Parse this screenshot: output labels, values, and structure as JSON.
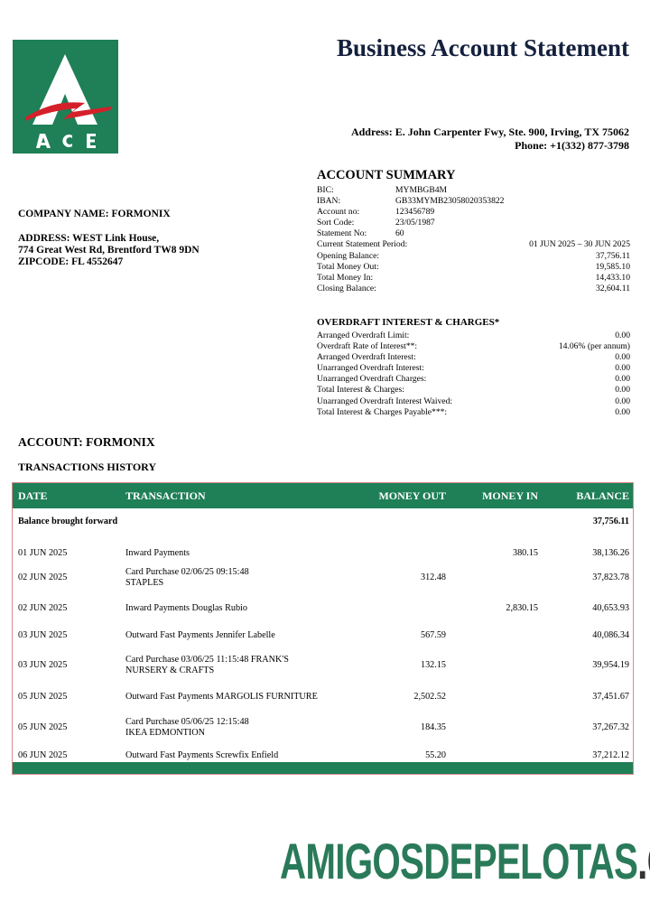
{
  "brand": {
    "logo_text": "ACE",
    "green": "#1f7f57",
    "red": "#d4202a"
  },
  "header": {
    "title": "Business Account Statement",
    "address": "Address: E. John Carpenter Fwy, Ste. 900, Irving, TX 75062",
    "phone": "Phone:  +1(332) 877-3798"
  },
  "customer": {
    "company": "COMPANY NAME: FORMONIX",
    "address_line1": "ADDRESS: WEST Link House,",
    "address_line2": "774 Great West Rd, Brentford TW8 9DN",
    "zipcode": "ZIPCODE: FL 4552647"
  },
  "summary": {
    "title": "ACCOUNT SUMMARY",
    "ids": [
      {
        "k": "BIC:",
        "v": "MYMBGB4M"
      },
      {
        "k": "IBAN:",
        "v": "GB33MYMB23058020353822"
      },
      {
        "k": "Account no:",
        "v": "123456789"
      },
      {
        "k": "Sort Code:",
        "v": "23/05/1987"
      },
      {
        "k": "Statement No:",
        "v": "60"
      }
    ],
    "figures": [
      {
        "k": "Current Statement Period:",
        "v": "01 JUN 2025 – 30 JUN 2025"
      },
      {
        "k": "Opening Balance:",
        "v": "37,756.11"
      },
      {
        "k": "Total Money Out:",
        "v": "19,585.10"
      },
      {
        "k": "Total Money In:",
        "v": "14,433.10"
      },
      {
        "k": "Closing Balance:",
        "v": "32,604.11"
      }
    ]
  },
  "overdraft": {
    "title": "OVERDRAFT INTEREST & CHARGES*",
    "rows": [
      {
        "k": "Arranged Overdraft Limit:",
        "v": "0.00"
      },
      {
        "k": "Overdraft Rate of Interest**:",
        "v": "14.06% (per annum)"
      },
      {
        "k": "Arranged Overdraft Interest:",
        "v": "0.00"
      },
      {
        "k": "Unarranged Overdraft Interest:",
        "v": "0.00"
      },
      {
        "k": "Unarranged Overdraft Charges:",
        "v": "0.00"
      },
      {
        "k": "Total Interest & Charges:",
        "v": "0.00"
      },
      {
        "k": "Unarranged Overdraft Interest Waived:",
        "v": "0.00"
      },
      {
        "k": "Total Interest & Charges Payable***:",
        "v": "0.00"
      }
    ]
  },
  "account_label": "ACCOUNT: FORMONIX",
  "history_label": "TRANSACTIONS HISTORY",
  "table": {
    "headers": {
      "date": "DATE",
      "transaction": "TRANSACTION",
      "out": "MONEY OUT",
      "in": "MONEY IN",
      "balance": "BALANCE"
    },
    "brought_forward": {
      "label": "Balance brought forward",
      "balance": "37,756.11"
    },
    "rows": [
      {
        "date": "01 JUN 2025",
        "l1": "Inward Payments",
        "l2": "",
        "out": "",
        "in": "380.15",
        "balance": "38,136.26"
      },
      {
        "date": "02 JUN 2025",
        "l1": "Card Purchase 02/06/25 09:15:48",
        "l2": "STAPLES",
        "out": "312.48",
        "in": "",
        "balance": "37,823.78"
      },
      {
        "date": "02 JUN 2025",
        "l1": "Inward Payments Douglas Rubio",
        "l2": "",
        "out": "",
        "in": "2,830.15",
        "balance": "40,653.93"
      },
      {
        "date": "03 JUN 2025",
        "l1": "Outward Fast Payments Jennifer Labelle",
        "l2": "",
        "out": "567.59",
        "in": "",
        "balance": "40,086.34"
      },
      {
        "date": "03 JUN 2025",
        "l1": "Card Purchase 03/06/25 11:15:48 FRANK'S",
        "l2": "NURSERY & CRAFTS",
        "out": "132.15",
        "in": "",
        "balance": "39,954.19"
      },
      {
        "date": "05 JUN 2025",
        "l1": "Outward Fast Payments MARGOLIS FURNITURE",
        "l2": "",
        "out": "2,502.52",
        "in": "",
        "balance": "37,451.67"
      },
      {
        "date": "05 JUN 2025",
        "l1": "Card Purchase 05/06/25 12:15:48",
        "l2": "IKEA EDMONTION",
        "out": "184.35",
        "in": "",
        "balance": "37,267.32"
      },
      {
        "date": "06 JUN 2025",
        "l1": "Outward Fast Payments Screwfix Enfield",
        "l2": "",
        "out": "55.20",
        "in": "",
        "balance": "37,212.12"
      }
    ]
  },
  "watermark": {
    "main": "AMIGOSDEPELOTAS",
    "suffix": ".COM"
  }
}
